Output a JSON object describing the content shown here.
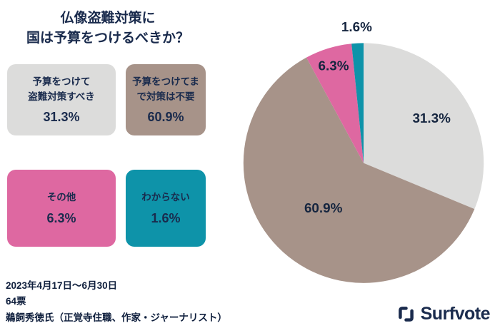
{
  "title": {
    "line1": "仏像盗難対策に",
    "line2": "国は予算をつけるべきか？"
  },
  "chart_data": {
    "type": "pie",
    "title": "仏像盗難対策に国は予算をつけるべきか？",
    "direction": "clockwise",
    "start_angle_deg": 0,
    "legend_position": "left",
    "total_votes": 64,
    "slices": [
      {
        "label": "予算をつけて盗難対策すべき",
        "value": 31.3,
        "pct_label": "31.3%",
        "color": "#dcdcdb"
      },
      {
        "label": "予算をつけてまで対策は不要",
        "value": 60.9,
        "pct_label": "60.9%",
        "color": "#a79389"
      },
      {
        "label": "その他",
        "value": 6.3,
        "pct_label": "6.3%",
        "color": "#de68a1"
      },
      {
        "label": "わからない",
        "value": 1.6,
        "pct_label": "1.6%",
        "color": "#0e93a9"
      }
    ]
  },
  "legend": {
    "items": [
      {
        "line1": "予算をつけて",
        "line2": "盗難対策すべき",
        "pct": "31.3%"
      },
      {
        "line1": "予算をつけてま",
        "line2": "で対策は不要",
        "pct": "60.9%"
      },
      {
        "line1": "その他",
        "line2": "",
        "pct": "6.3%"
      },
      {
        "line1": "わからない",
        "line2": "",
        "pct": "1.6%"
      }
    ]
  },
  "footer": {
    "period": "2023年4月17日〜6月30日",
    "votes": "64票",
    "author": "鵜飼秀徳氏（正覚寺住職、作家・ジャーナリスト）"
  },
  "brand": {
    "name": "Surfvote"
  },
  "colors": {
    "text": "#1a2b4d",
    "background": "#ffffff"
  }
}
